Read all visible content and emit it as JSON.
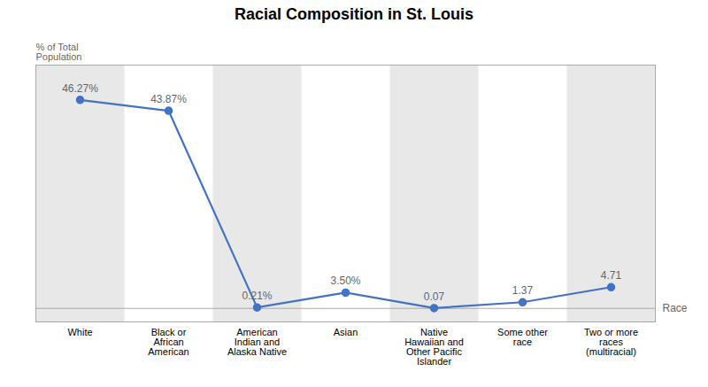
{
  "chart_data": {
    "type": "line",
    "title": "Racial Composition in St. Louis",
    "xlabel": "Race",
    "ylabel": "% of Total\nPopulation",
    "categories": [
      "White",
      "Black or\nAfrican\nAmerican",
      "American\nIndian and\nAlaska Native",
      "Asian",
      "Native\nHawaiian and\nOther Pacific\nIslander",
      "Some other\nrace",
      "Two or more\nraces\n(multiracial)"
    ],
    "values": [
      46.27,
      43.87,
      0.21,
      3.5,
      0.07,
      1.37,
      4.71
    ],
    "value_labels": [
      "46.27%",
      "43.87%",
      "0.21%",
      "3.50%",
      "0.07",
      "1.37",
      "4.71"
    ],
    "data_labels": true,
    "color": "#4472C4",
    "marker": "circle",
    "ylim": [
      -3,
      54
    ],
    "yticks": [],
    "grid": false,
    "tick_labels": "x"
  }
}
